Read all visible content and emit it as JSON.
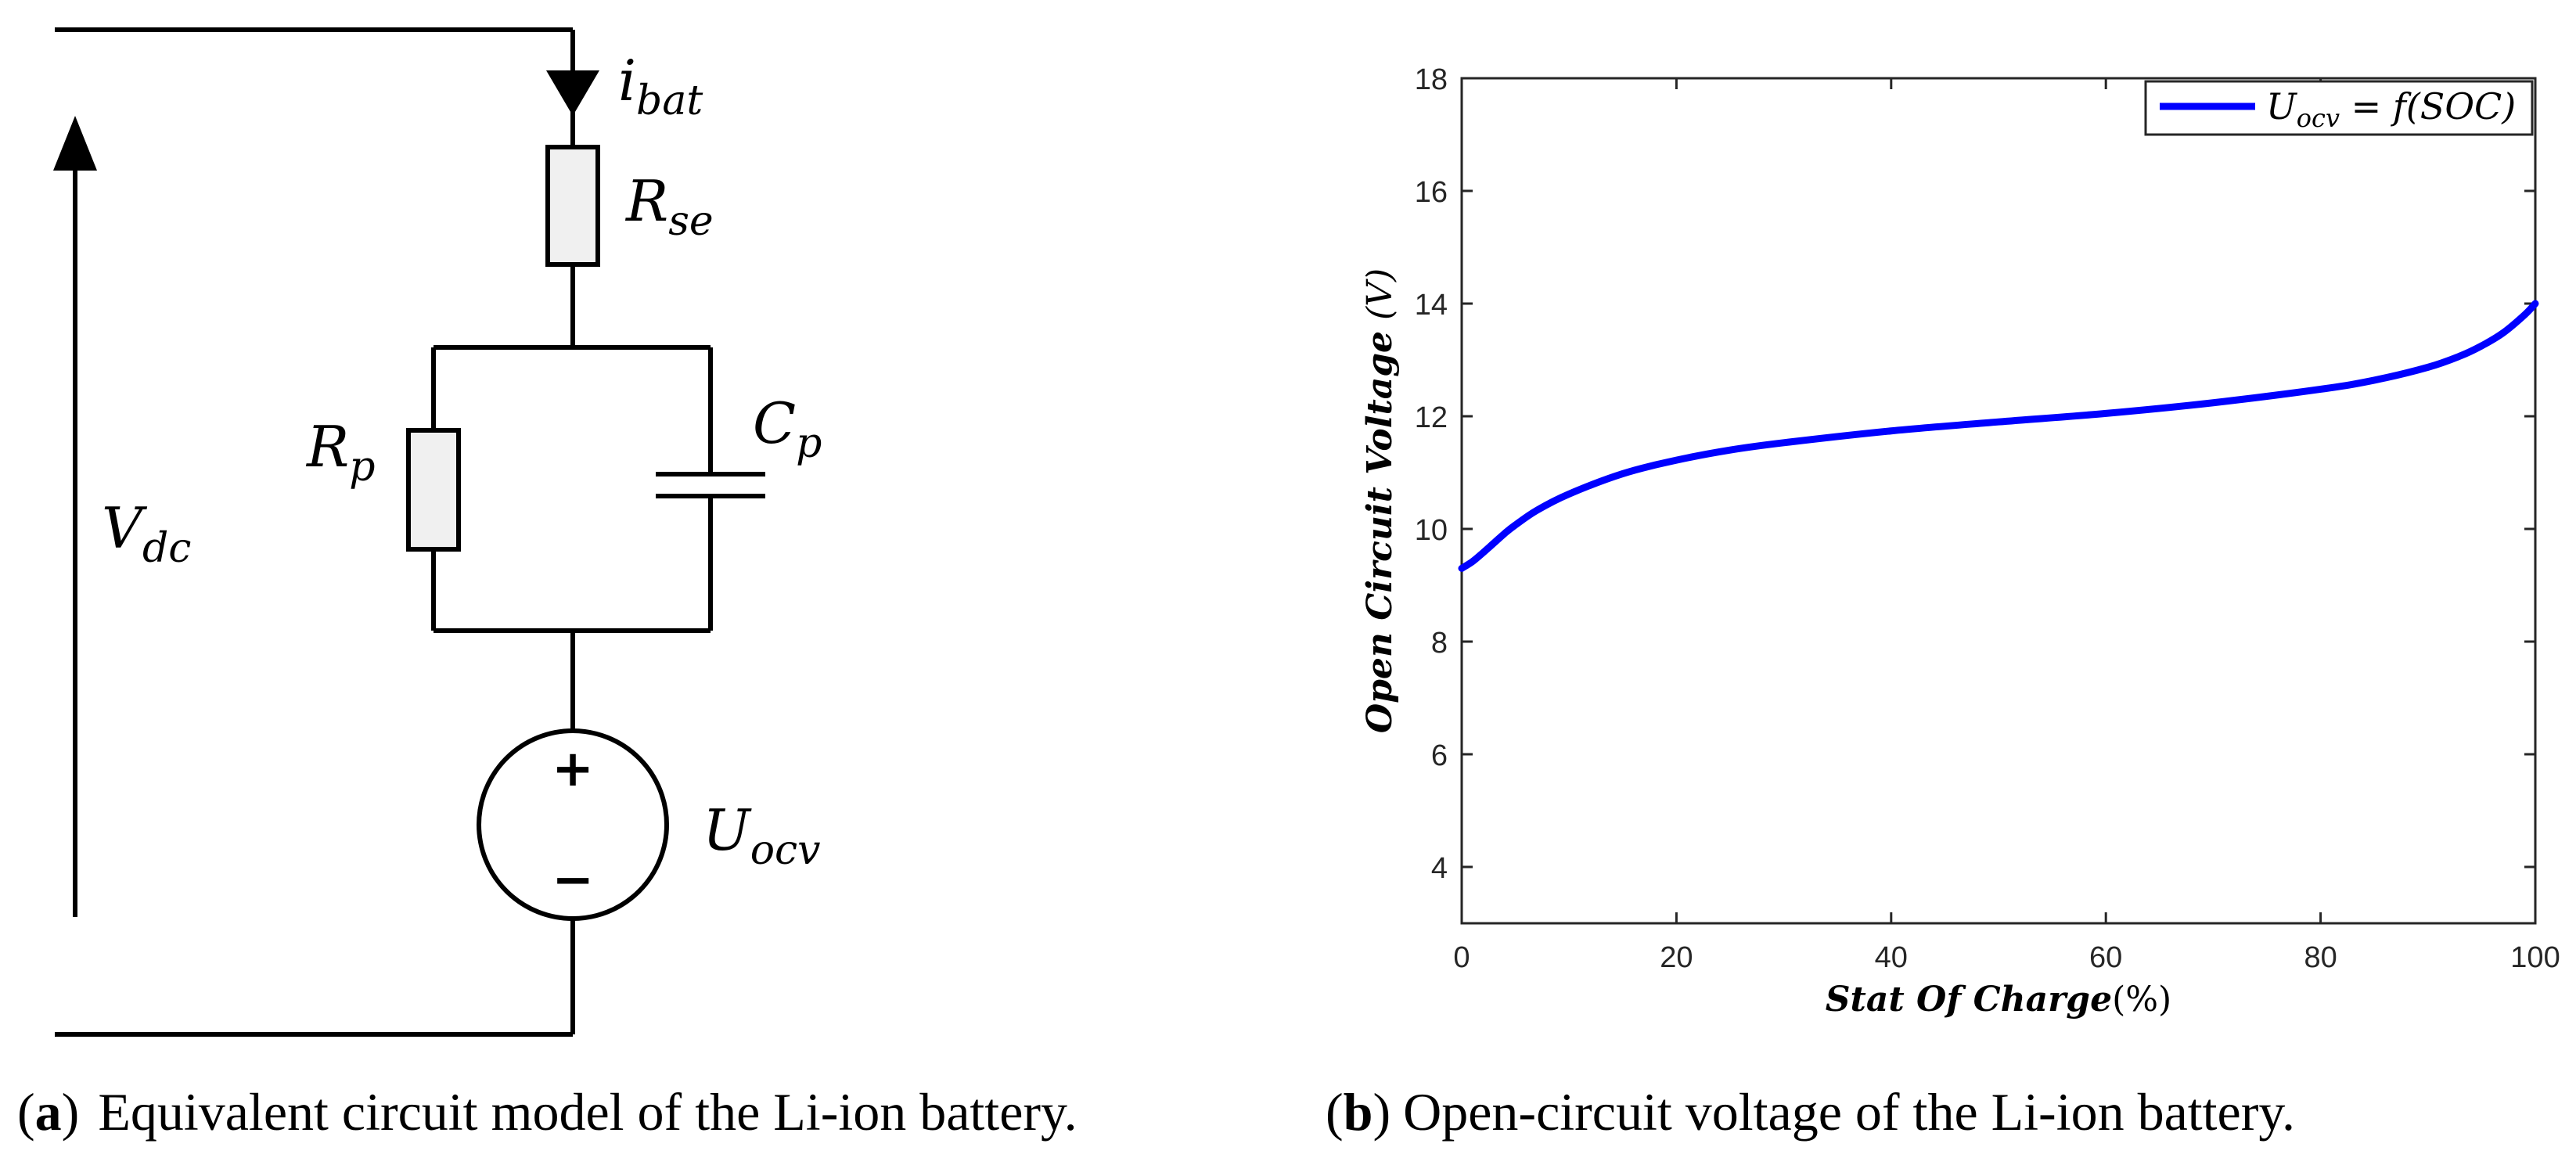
{
  "circuit": {
    "current_label": {
      "main": "i",
      "sub": "bat"
    },
    "series_resistor": {
      "main": "R",
      "sub": "se"
    },
    "parallel_resistor": {
      "main": "R",
      "sub": "p"
    },
    "parallel_capacitor": {
      "main": "C",
      "sub": "p"
    },
    "voltage_label": {
      "main": "V",
      "sub": "dc"
    },
    "source_label": {
      "main": "U",
      "sub": "ocv"
    },
    "source_plus": "+",
    "source_minus": "−"
  },
  "captions": {
    "a": {
      "tag": "a",
      "text": "Equivalent circuit model of the Li-ion battery."
    },
    "b": {
      "tag": "b",
      "text": "Open-circuit voltage of the Li-ion battery."
    }
  },
  "chart_data": {
    "type": "line",
    "xlabel": "Stat Of Charge",
    "xlabel_unit": "(%)",
    "ylabel": "Open Circuit Voltage",
    "ylabel_unit": "(V)",
    "xlim": [
      0,
      100
    ],
    "ylim": [
      3,
      18
    ],
    "xticks": [
      0,
      20,
      40,
      60,
      80,
      100
    ],
    "yticks": [
      4,
      6,
      8,
      10,
      12,
      14,
      16,
      18
    ],
    "grid": false,
    "legend_position": "top-right",
    "series": [
      {
        "name": "U_ocv = f(SOC)",
        "legend": {
          "main": "U",
          "sub": "ocv",
          "rest": " = f(SOC)"
        },
        "color": "#0000ff",
        "x": [
          0,
          1,
          2,
          3,
          4,
          5,
          7,
          10,
          15,
          20,
          25,
          30,
          40,
          50,
          60,
          70,
          80,
          85,
          90,
          93,
          95,
          97,
          99,
          100
        ],
        "y": [
          9.3,
          9.42,
          9.58,
          9.75,
          9.92,
          10.07,
          10.33,
          10.62,
          10.98,
          11.22,
          11.4,
          11.53,
          11.74,
          11.9,
          12.05,
          12.24,
          12.48,
          12.64,
          12.87,
          13.07,
          13.25,
          13.48,
          13.8,
          14.0
        ]
      }
    ]
  }
}
